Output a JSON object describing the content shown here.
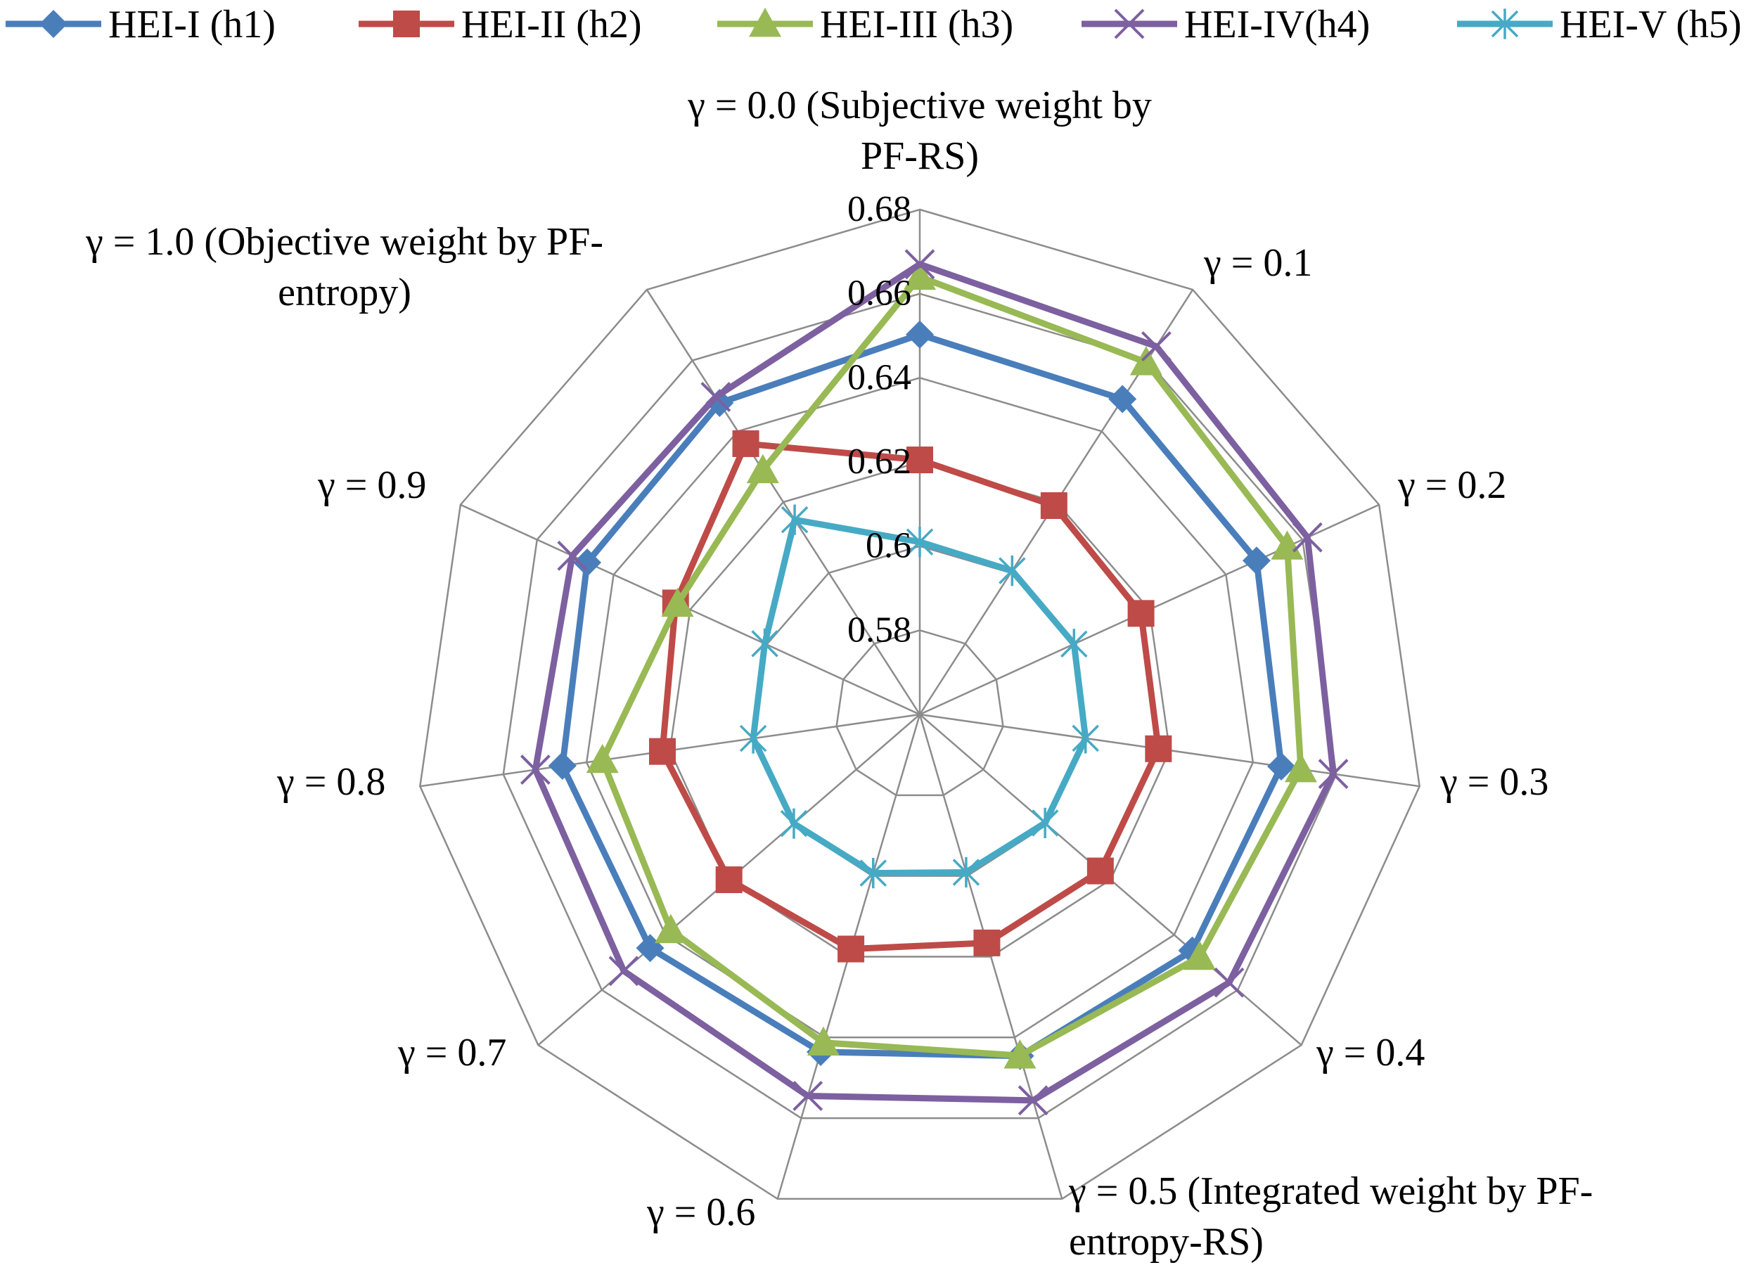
{
  "chart_data": {
    "type": "radar",
    "title": "",
    "categories": [
      "γ = 0.0 (Subjective weight by PF-RS)",
      "γ = 0.1",
      "γ = 0.2",
      "γ = 0.3",
      "γ = 0.4",
      "γ = 0.5 (Integrated weight by PF-entropy-RS)",
      "γ = 0.6",
      "γ = 0.7",
      "γ = 0.8",
      "γ = 0.9",
      "γ = 1.0 (Objective weight by PF-entropy)"
    ],
    "category_lines": [
      [
        "γ = 0.0 (Subjective weight by",
        "PF-RS)"
      ],
      [
        "γ = 0.1"
      ],
      [
        "γ = 0.2"
      ],
      [
        "γ = 0.3"
      ],
      [
        "γ = 0.4"
      ],
      [
        "γ = 0.5 (Integrated weight by PF-",
        "entropy-RS)"
      ],
      [
        "γ = 0.6"
      ],
      [
        "γ = 0.7"
      ],
      [
        "γ = 0.8"
      ],
      [
        "γ = 0.9"
      ],
      [
        "γ = 1.0 (Objective weight by PF-",
        "entropy)"
      ]
    ],
    "rlim": [
      0.56,
      0.68
    ],
    "ticks": [
      0.58,
      0.6,
      0.62,
      0.64,
      0.66,
      0.68
    ],
    "tick_labels": [
      "0.58",
      "0.6",
      "0.62",
      "0.64",
      "0.66",
      "0.68"
    ],
    "grid": true,
    "legend_position": "top",
    "series": [
      {
        "name": "HEI-I (h1)",
        "color": "#4a7ebb",
        "marker": "diamond",
        "values": [
          0.6503,
          0.6491,
          0.648,
          0.6468,
          0.6457,
          0.6446,
          0.6436,
          0.6448,
          0.6458,
          0.6469,
          0.648
        ]
      },
      {
        "name": "HEI-II (h2)",
        "color": "#be4b48",
        "marker": "square",
        "values": [
          0.6205,
          0.619,
          0.6178,
          0.6173,
          0.6168,
          0.6166,
          0.6181,
          0.62,
          0.6218,
          0.6238,
          0.6365
        ]
      },
      {
        "name": "HEI-III (h3)",
        "color": "#98b954",
        "marker": "triangle",
        "values": [
          0.664,
          0.6595,
          0.656,
          0.6515,
          0.648,
          0.6445,
          0.6413,
          0.6383,
          0.6362,
          0.6233,
          0.629
        ]
      },
      {
        "name": "HEI-IV(h4)",
        "color": "#7d60a0",
        "marker": "x",
        "values": [
          0.667,
          0.664,
          0.6613,
          0.6593,
          0.6573,
          0.6556,
          0.6545,
          0.6531,
          0.6523,
          0.6508,
          0.6497
        ]
      },
      {
        "name": "HEI-V (h5)",
        "color": "#46aac5",
        "marker": "star",
        "values": [
          0.601,
          0.6006,
          0.6003,
          0.5998,
          0.5994,
          0.5991,
          0.5993,
          0.5996,
          0.6,
          0.6005,
          0.615
        ]
      }
    ]
  }
}
